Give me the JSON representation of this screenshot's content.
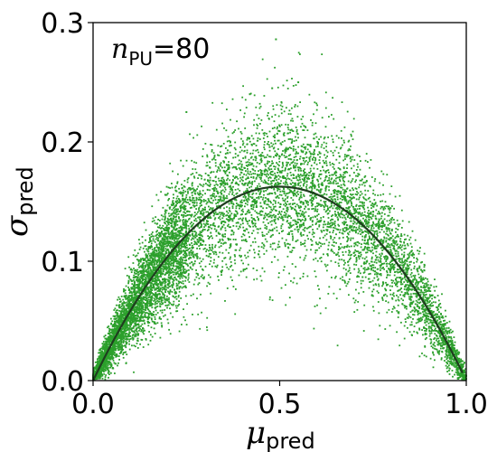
{
  "chart_data": {
    "type": "scatter",
    "title": "",
    "xlabel": {
      "symbol": "μ",
      "subscript": "pred"
    },
    "ylabel": {
      "symbol": "σ",
      "subscript": "pred"
    },
    "xlim": [
      0.0,
      1.0
    ],
    "ylim": [
      0.0,
      0.3
    ],
    "xticks": [
      0.0,
      0.5,
      1.0
    ],
    "yticks": [
      0.0,
      0.1,
      0.2,
      0.3
    ],
    "xtick_labels": [
      "0.0",
      "0.5",
      "1.0"
    ],
    "ytick_labels": [
      "0.0",
      "0.1",
      "0.2",
      "0.3"
    ],
    "grid": false,
    "legend": "none",
    "annotation": {
      "variable": "n",
      "subscript": "PU",
      "text": "=80"
    },
    "scatter_color": "#2ca02c",
    "curve_color": "#1f3d1f",
    "series": [
      {
        "kind": "scatter",
        "description_points": [
          [
            0.02,
            0.01
          ],
          [
            0.05,
            0.03
          ],
          [
            0.08,
            0.05
          ],
          [
            0.1,
            0.06
          ],
          [
            0.12,
            0.07
          ],
          [
            0.15,
            0.09
          ],
          [
            0.2,
            0.11
          ],
          [
            0.25,
            0.13
          ],
          [
            0.3,
            0.145
          ],
          [
            0.35,
            0.155
          ],
          [
            0.4,
            0.165
          ],
          [
            0.45,
            0.17
          ],
          [
            0.5,
            0.165
          ],
          [
            0.55,
            0.165
          ],
          [
            0.6,
            0.16
          ],
          [
            0.65,
            0.15
          ],
          [
            0.7,
            0.14
          ],
          [
            0.75,
            0.12
          ],
          [
            0.8,
            0.1
          ],
          [
            0.85,
            0.08
          ],
          [
            0.9,
            0.06
          ],
          [
            0.95,
            0.03
          ],
          [
            0.98,
            0.01
          ],
          [
            0.42,
            0.24
          ],
          [
            0.48,
            0.245
          ],
          [
            0.55,
            0.25
          ],
          [
            0.49,
            0.286
          ],
          [
            0.25,
            0.225
          ]
        ]
      },
      {
        "kind": "line",
        "function": "0.65*x*(1-x)",
        "x": [
          0.0,
          0.05,
          0.1,
          0.15,
          0.2,
          0.25,
          0.3,
          0.35,
          0.4,
          0.45,
          0.5,
          0.55,
          0.6,
          0.65,
          0.7,
          0.75,
          0.8,
          0.85,
          0.9,
          0.95,
          0.99
        ],
        "y": [
          0.0,
          0.031,
          0.059,
          0.083,
          0.104,
          0.122,
          0.137,
          0.148,
          0.156,
          0.161,
          0.163,
          0.161,
          0.156,
          0.148,
          0.137,
          0.122,
          0.104,
          0.083,
          0.059,
          0.031,
          0.006
        ]
      }
    ]
  }
}
